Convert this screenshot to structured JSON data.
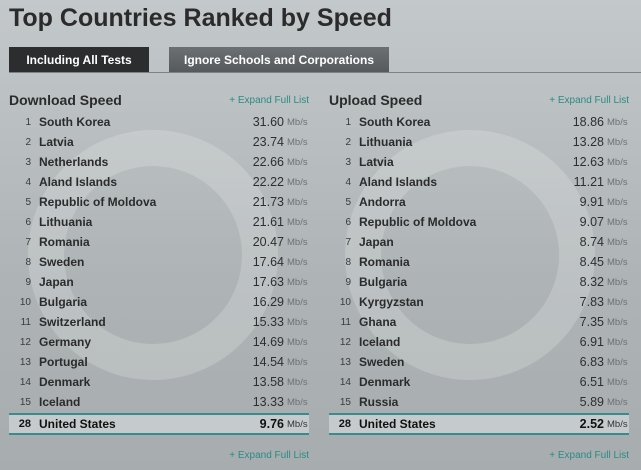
{
  "title": "Top Countries Ranked by Speed",
  "tabs": [
    {
      "label": "Including All Tests",
      "active": true
    },
    {
      "label": "Ignore Schools and Corporations",
      "active": false
    }
  ],
  "expand_label": "+ Expand Full List",
  "unit": "Mb/s",
  "download": {
    "heading": "Download Speed",
    "icon": "arrow-down-icon",
    "rows": [
      {
        "rank": "1",
        "name": "South Korea",
        "value": "31.60"
      },
      {
        "rank": "2",
        "name": "Latvia",
        "value": "23.74"
      },
      {
        "rank": "3",
        "name": "Netherlands",
        "value": "22.66"
      },
      {
        "rank": "4",
        "name": "Aland Islands",
        "value": "22.22"
      },
      {
        "rank": "5",
        "name": "Republic of Moldova",
        "value": "21.73"
      },
      {
        "rank": "6",
        "name": "Lithuania",
        "value": "21.61"
      },
      {
        "rank": "7",
        "name": "Romania",
        "value": "20.47"
      },
      {
        "rank": "8",
        "name": "Sweden",
        "value": "17.64"
      },
      {
        "rank": "9",
        "name": "Japan",
        "value": "17.63"
      },
      {
        "rank": "10",
        "name": "Bulgaria",
        "value": "16.29"
      },
      {
        "rank": "11",
        "name": "Switzerland",
        "value": "15.33"
      },
      {
        "rank": "12",
        "name": "Germany",
        "value": "14.69"
      },
      {
        "rank": "13",
        "name": "Portugal",
        "value": "14.54"
      },
      {
        "rank": "14",
        "name": "Denmark",
        "value": "13.58"
      },
      {
        "rank": "15",
        "name": "Iceland",
        "value": "13.33"
      }
    ],
    "highlight": {
      "rank": "28",
      "name": "United States",
      "value": "9.76"
    }
  },
  "upload": {
    "heading": "Upload Speed",
    "icon": "arrow-up-icon",
    "rows": [
      {
        "rank": "1",
        "name": "South Korea",
        "value": "18.86"
      },
      {
        "rank": "2",
        "name": "Lithuania",
        "value": "13.28"
      },
      {
        "rank": "3",
        "name": "Latvia",
        "value": "12.63"
      },
      {
        "rank": "4",
        "name": "Aland Islands",
        "value": "11.21"
      },
      {
        "rank": "5",
        "name": "Andorra",
        "value": "9.91"
      },
      {
        "rank": "6",
        "name": "Republic of Moldova",
        "value": "9.07"
      },
      {
        "rank": "7",
        "name": "Japan",
        "value": "8.74"
      },
      {
        "rank": "8",
        "name": "Romania",
        "value": "8.45"
      },
      {
        "rank": "9",
        "name": "Bulgaria",
        "value": "8.32"
      },
      {
        "rank": "10",
        "name": "Kyrgyzstan",
        "value": "7.83"
      },
      {
        "rank": "11",
        "name": "Ghana",
        "value": "7.35"
      },
      {
        "rank": "12",
        "name": "Iceland",
        "value": "6.91"
      },
      {
        "rank": "13",
        "name": "Sweden",
        "value": "6.83"
      },
      {
        "rank": "14",
        "name": "Denmark",
        "value": "6.51"
      },
      {
        "rank": "15",
        "name": "Russia",
        "value": "5.89"
      }
    ],
    "highlight": {
      "rank": "28",
      "name": "United States",
      "value": "2.52"
    }
  }
}
